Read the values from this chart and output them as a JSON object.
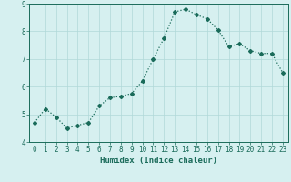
{
  "x": [
    0,
    1,
    2,
    3,
    4,
    5,
    6,
    7,
    8,
    9,
    10,
    11,
    12,
    13,
    14,
    15,
    16,
    17,
    18,
    19,
    20,
    21,
    22,
    23
  ],
  "y": [
    4.7,
    5.2,
    4.9,
    4.5,
    4.6,
    4.7,
    5.3,
    5.6,
    5.65,
    5.75,
    6.2,
    7.0,
    7.75,
    8.7,
    8.8,
    8.6,
    8.45,
    8.05,
    7.45,
    7.55,
    7.3,
    7.2,
    7.2,
    6.5
  ],
  "line_color": "#1a6b5a",
  "marker": "D",
  "marker_size": 2.0,
  "bg_color": "#d6f0f0",
  "grid_color": "#b0d8d8",
  "xlabel": "Humidex (Indice chaleur)",
  "ylim": [
    4,
    9
  ],
  "xlim": [
    -0.5,
    23.5
  ],
  "yticks": [
    4,
    5,
    6,
    7,
    8,
    9
  ],
  "xticks": [
    0,
    1,
    2,
    3,
    4,
    5,
    6,
    7,
    8,
    9,
    10,
    11,
    12,
    13,
    14,
    15,
    16,
    17,
    18,
    19,
    20,
    21,
    22,
    23
  ],
  "tick_color": "#1a6b5a",
  "label_fontsize": 5.5,
  "xlabel_fontsize": 6.5
}
